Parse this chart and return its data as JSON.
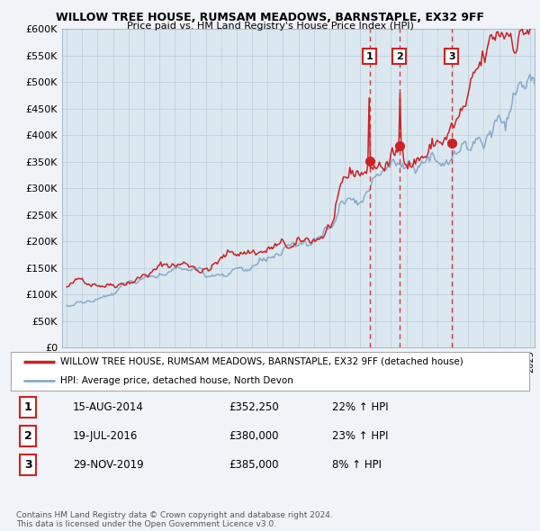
{
  "title": "WILLOW TREE HOUSE, RUMSAM MEADOWS, BARNSTAPLE, EX32 9FF",
  "subtitle": "Price paid vs. HM Land Registry's House Price Index (HPI)",
  "ylim": [
    0,
    600000
  ],
  "yticks": [
    0,
    50000,
    100000,
    150000,
    200000,
    250000,
    300000,
    350000,
    400000,
    450000,
    500000,
    550000,
    600000
  ],
  "ytick_labels": [
    "£0",
    "£50K",
    "£100K",
    "£150K",
    "£200K",
    "£250K",
    "£300K",
    "£350K",
    "£400K",
    "£450K",
    "£500K",
    "£550K",
    "£600K"
  ],
  "xlim_start": 1994.7,
  "xlim_end": 2025.3,
  "red_line_color": "#cc2222",
  "blue_line_color": "#88aacc",
  "vline_color": "#cc2222",
  "sale_dates": [
    2014.62,
    2016.55,
    2019.92
  ],
  "sale_prices": [
    352250,
    380000,
    385000
  ],
  "legend_entries": [
    "WILLOW TREE HOUSE, RUMSAM MEADOWS, BARNSTAPLE, EX32 9FF (detached house)",
    "HPI: Average price, detached house, North Devon"
  ],
  "table_data": [
    [
      "1",
      "15-AUG-2014",
      "£352,250",
      "22% ↑ HPI"
    ],
    [
      "2",
      "19-JUL-2016",
      "£380,000",
      "23% ↑ HPI"
    ],
    [
      "3",
      "29-NOV-2019",
      "£385,000",
      "8% ↑ HPI"
    ]
  ],
  "footer": "Contains HM Land Registry data © Crown copyright and database right 2024.\nThis data is licensed under the Open Government Licence v3.0.",
  "bg_color": "#f0f4f8",
  "plot_bg_color": "#dce8f0",
  "legend_bg": "#ffffff",
  "grid_color": "#bbccdd"
}
